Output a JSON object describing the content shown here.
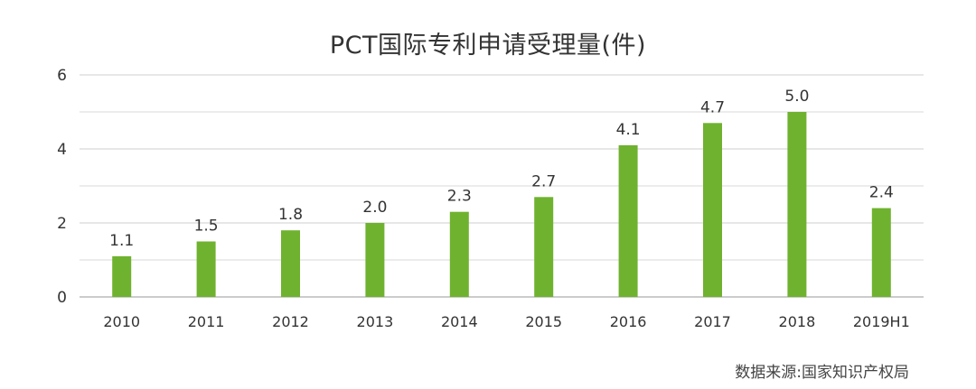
{
  "chart_data": {
    "type": "bar",
    "title": "PCT国际专利申请受理量(件)",
    "categories": [
      "2010",
      "2011",
      "2012",
      "2013",
      "2014",
      "2015",
      "2016",
      "2017",
      "2018",
      "2019H1"
    ],
    "values": [
      1.1,
      1.5,
      1.8,
      2.0,
      2.3,
      2.7,
      4.1,
      4.7,
      5.0,
      2.4
    ],
    "value_labels": [
      "1.1",
      "1.5",
      "1.8",
      "2.0",
      "2.3",
      "2.7",
      "4.1",
      "4.7",
      "5.0",
      "2.4"
    ],
    "ylim": [
      0,
      6
    ],
    "yticks": [
      "0",
      "2",
      "4",
      "6"
    ],
    "minor_gridlines": [
      1,
      3,
      5
    ],
    "xlabel": "",
    "ylabel": "",
    "grid": true,
    "legend": "none",
    "bar_color": "#6fb22f"
  },
  "source": "数据来源:国家知识产权局"
}
